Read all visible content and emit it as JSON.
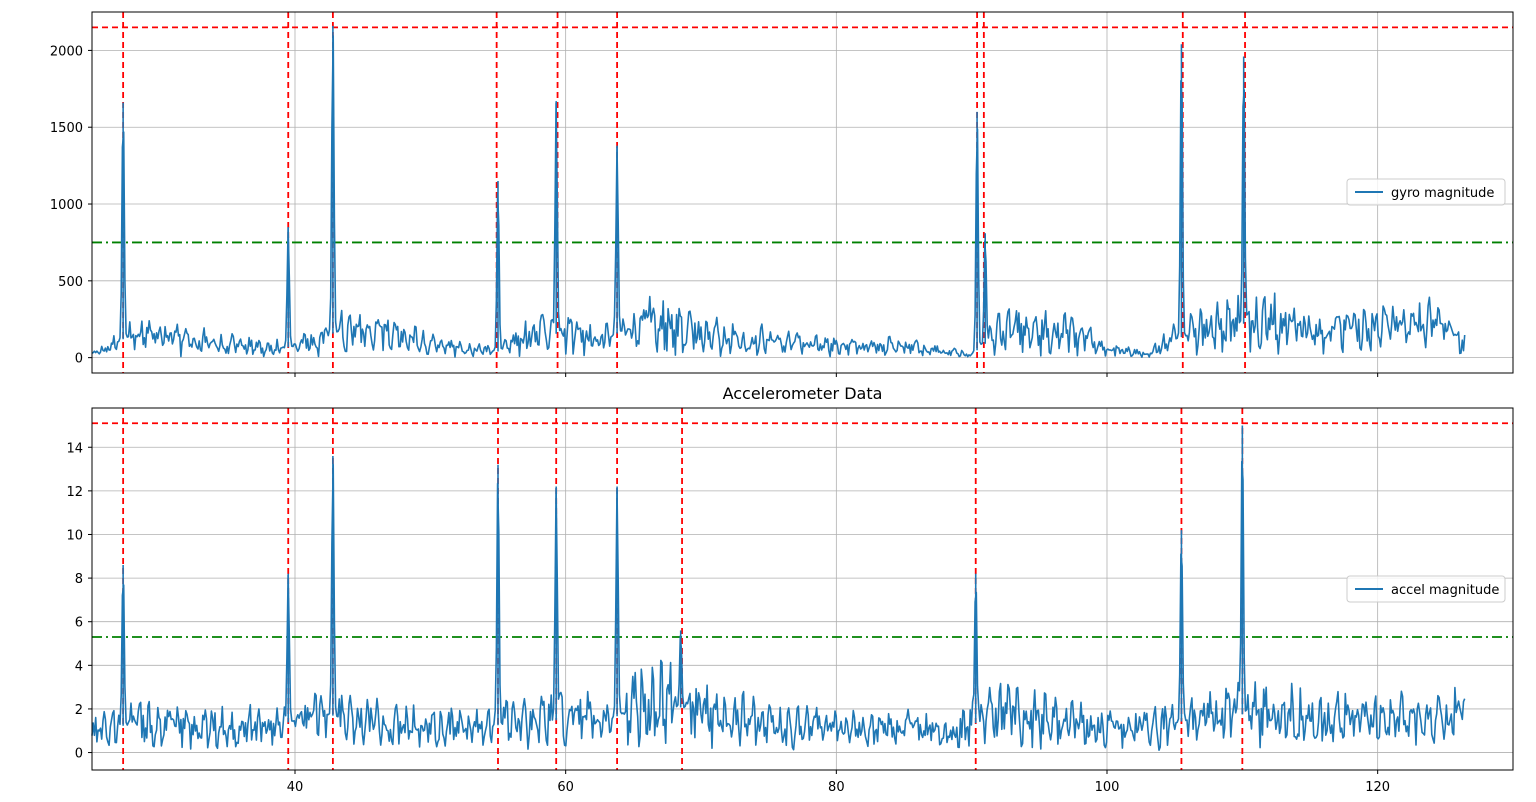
{
  "colors": {
    "series": "#1f77b4",
    "peak_marker": "#ff0000",
    "threshold": "#008000",
    "grid": "#b0b0b0",
    "axes": "#000000"
  },
  "chart_data": [
    {
      "type": "line",
      "title": "",
      "xlabel": "",
      "ylabel": "",
      "xlim": [
        25,
        130
      ],
      "ylim": [
        -100,
        2250
      ],
      "x_ticks": [
        40,
        60,
        80,
        100,
        120
      ],
      "x_tick_labels": [
        "",
        "",
        "",
        "",
        ""
      ],
      "y_ticks": [
        0,
        500,
        1000,
        1500,
        2000
      ],
      "y_tick_labels": [
        "0",
        "500",
        "1000",
        "1500",
        "2000"
      ],
      "grid": true,
      "legend": {
        "position": "center-right",
        "entries": [
          "gyro magnitude"
        ]
      },
      "series": [
        {
          "name": "gyro magnitude",
          "x_range": [
            25,
            126.5
          ],
          "baseline": [
            [
              25,
              20
            ],
            [
              28,
              150
            ],
            [
              32,
              120
            ],
            [
              36,
              80
            ],
            [
              39,
              60
            ],
            [
              41,
              90
            ],
            [
              44,
              200
            ],
            [
              48,
              140
            ],
            [
              52,
              60
            ],
            [
              55,
              40
            ],
            [
              57,
              140
            ],
            [
              60,
              160
            ],
            [
              63,
              120
            ],
            [
              66,
              260
            ],
            [
              70,
              150
            ],
            [
              75,
              110
            ],
            [
              80,
              70
            ],
            [
              84,
              80
            ],
            [
              88,
              40
            ],
            [
              90,
              20
            ],
            [
              92,
              160
            ],
            [
              96,
              200
            ],
            [
              100,
              60
            ],
            [
              103,
              20
            ],
            [
              105,
              120
            ],
            [
              108,
              200
            ],
            [
              112,
              240
            ],
            [
              116,
              150
            ],
            [
              120,
              200
            ],
            [
              124,
              220
            ],
            [
              126.5,
              100
            ]
          ],
          "spikes": [
            {
              "x": 27.3,
              "y": 1660
            },
            {
              "x": 39.5,
              "y": 850
            },
            {
              "x": 42.8,
              "y": 2160
            },
            {
              "x": 55.0,
              "y": 1150
            },
            {
              "x": 59.3,
              "y": 1670
            },
            {
              "x": 63.8,
              "y": 1380
            },
            {
              "x": 90.4,
              "y": 1600
            },
            {
              "x": 91.0,
              "y": 810
            },
            {
              "x": 105.5,
              "y": 2040
            },
            {
              "x": 110.1,
              "y": 1960
            }
          ]
        }
      ],
      "peak_lines_x": [
        27.3,
        39.5,
        42.8,
        54.9,
        59.4,
        63.8,
        90.4,
        90.9,
        105.6,
        110.2
      ],
      "peak_level_y": 2150,
      "threshold_y": 750
    },
    {
      "type": "line",
      "title": "Accelerometer Data",
      "xlabel": "",
      "ylabel": "",
      "xlim": [
        25,
        130
      ],
      "ylim": [
        -0.8,
        15.8
      ],
      "x_ticks": [
        40,
        60,
        80,
        100,
        120
      ],
      "x_tick_labels": [
        "40",
        "60",
        "80",
        "100",
        "120"
      ],
      "y_ticks": [
        0,
        2,
        4,
        6,
        8,
        10,
        12,
        14
      ],
      "y_tick_labels": [
        "0",
        "2",
        "4",
        "6",
        "8",
        "10",
        "12",
        "14"
      ],
      "grid": true,
      "legend": {
        "position": "center-right",
        "entries": [
          "accel magnitude"
        ]
      },
      "series": [
        {
          "name": "accel magnitude",
          "x_range": [
            25,
            126.5
          ],
          "baseline": [
            [
              25,
              1.0
            ],
            [
              28,
              1.3
            ],
            [
              32,
              1.2
            ],
            [
              36,
              1.1
            ],
            [
              39,
              1.3
            ],
            [
              42,
              1.8
            ],
            [
              45,
              1.4
            ],
            [
              50,
              1.1
            ],
            [
              54,
              1.1
            ],
            [
              56,
              1.4
            ],
            [
              60,
              1.5
            ],
            [
              63,
              1.4
            ],
            [
              66,
              2.4
            ],
            [
              69,
              2.0
            ],
            [
              72,
              1.6
            ],
            [
              76,
              1.2
            ],
            [
              80,
              1.1
            ],
            [
              85,
              1.1
            ],
            [
              89,
              1.0
            ],
            [
              92,
              1.8
            ],
            [
              96,
              1.5
            ],
            [
              100,
              1.1
            ],
            [
              104,
              1.2
            ],
            [
              108,
              1.8
            ],
            [
              112,
              1.7
            ],
            [
              116,
              1.6
            ],
            [
              120,
              1.5
            ],
            [
              124,
              1.5
            ],
            [
              126.5,
              1.9
            ]
          ],
          "spikes": [
            {
              "x": 27.3,
              "y": 8.6
            },
            {
              "x": 39.5,
              "y": 8.2
            },
            {
              "x": 42.8,
              "y": 13.6
            },
            {
              "x": 55.0,
              "y": 13.2
            },
            {
              "x": 59.3,
              "y": 12.2
            },
            {
              "x": 63.8,
              "y": 12.2
            },
            {
              "x": 68.5,
              "y": 5.6
            },
            {
              "x": 90.3,
              "y": 8.2
            },
            {
              "x": 105.5,
              "y": 10.2
            },
            {
              "x": 110.0,
              "y": 15.0
            }
          ]
        }
      ],
      "peak_lines_x": [
        27.3,
        39.5,
        42.8,
        55.0,
        59.3,
        63.8,
        68.6,
        90.3,
        105.5,
        110.0
      ],
      "peak_level_y": 15.1,
      "threshold_y": 5.3
    }
  ]
}
